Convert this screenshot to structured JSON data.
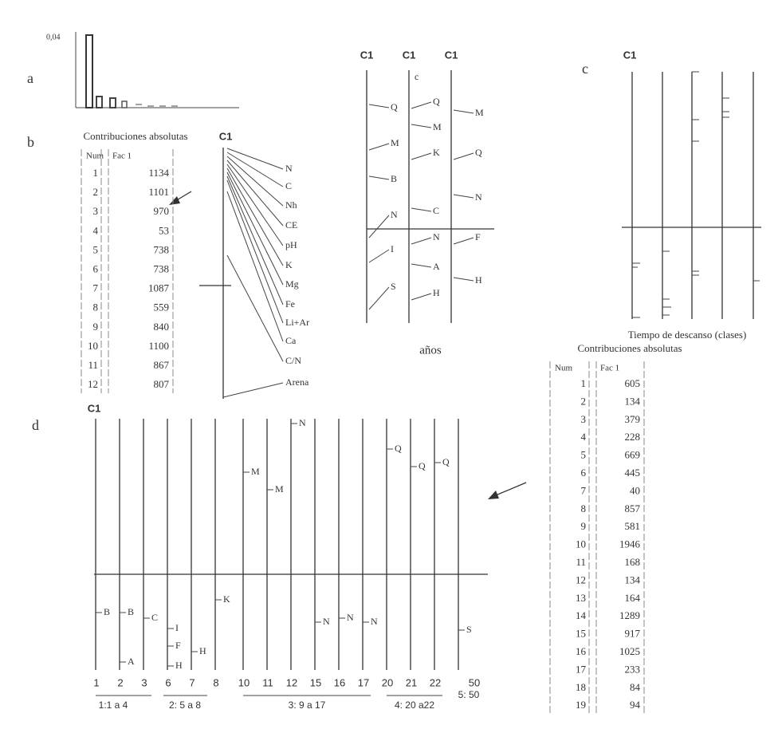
{
  "panel_labels": [
    "a",
    "b",
    "c",
    "d"
  ],
  "panel_a": {
    "tick": "0,04"
  },
  "panel_b": {
    "title": "Contribuciones absolutas",
    "axis": "C1",
    "table": {
      "headers": [
        "Num",
        "Fac  1"
      ],
      "rows": [
        [
          "1",
          "1134"
        ],
        [
          "2",
          "1101"
        ],
        [
          "3",
          "970"
        ],
        [
          "4",
          "53"
        ],
        [
          "5",
          "738"
        ],
        [
          "6",
          "738"
        ],
        [
          "7",
          "1087"
        ],
        [
          "8",
          "559"
        ],
        [
          "9",
          "840"
        ],
        [
          "10",
          "1100"
        ],
        [
          "11",
          "867"
        ],
        [
          "12",
          "807"
        ]
      ]
    },
    "variables": [
      "N",
      "C",
      "Nh",
      "CE",
      "pH",
      "K",
      "Mg",
      "Fe",
      "Li+Ar",
      "Ca",
      "C/N",
      "Arena"
    ]
  },
  "panel_years": {
    "axes": [
      "C1",
      "C1",
      "C1"
    ],
    "caption": "años",
    "columns": [
      [
        "Q",
        "M",
        "B",
        "N",
        "I",
        "S"
      ],
      [
        "c",
        "Q",
        "M",
        "K",
        "C",
        "N",
        "A",
        "H"
      ],
      [
        "M",
        "Q",
        "N",
        "F",
        "H"
      ]
    ]
  },
  "panel_c": {
    "axis": "C1",
    "caption": "Tiempo de descanso (clases)",
    "title": "Contribuciones absolutas",
    "table": {
      "headers": [
        "Num",
        "Fac  1"
      ],
      "rows": [
        [
          "1",
          "605"
        ],
        [
          "2",
          "134"
        ],
        [
          "3",
          "379"
        ],
        [
          "4",
          "228"
        ],
        [
          "5",
          "669"
        ],
        [
          "6",
          "445"
        ],
        [
          "7",
          "40"
        ],
        [
          "8",
          "857"
        ],
        [
          "9",
          "581"
        ],
        [
          "10",
          "1946"
        ],
        [
          "11",
          "168"
        ],
        [
          "12",
          "134"
        ],
        [
          "13",
          "164"
        ],
        [
          "14",
          "1289"
        ],
        [
          "15",
          "917"
        ],
        [
          "16",
          "1025"
        ],
        [
          "17",
          "233"
        ],
        [
          "18",
          "84"
        ],
        [
          "19",
          "94"
        ]
      ]
    }
  },
  "panel_d": {
    "axis": "C1",
    "x_labels": [
      "1",
      "2",
      "3",
      "6",
      "7",
      "8",
      "10",
      "11",
      "12",
      "15",
      "16",
      "17",
      "20",
      "21",
      "22",
      "50"
    ],
    "point_labels": [
      "B",
      "B",
      "C",
      "A",
      "I",
      "F",
      "H",
      "H",
      "K",
      "M",
      "M",
      "N",
      "N",
      "N",
      "N",
      "Q",
      "Q",
      "Q",
      "S"
    ],
    "groups": [
      "1:1 a 4",
      "2: 5 a 8",
      "3: 9 a 17",
      "4: 20 a22",
      "5: 50"
    ]
  }
}
